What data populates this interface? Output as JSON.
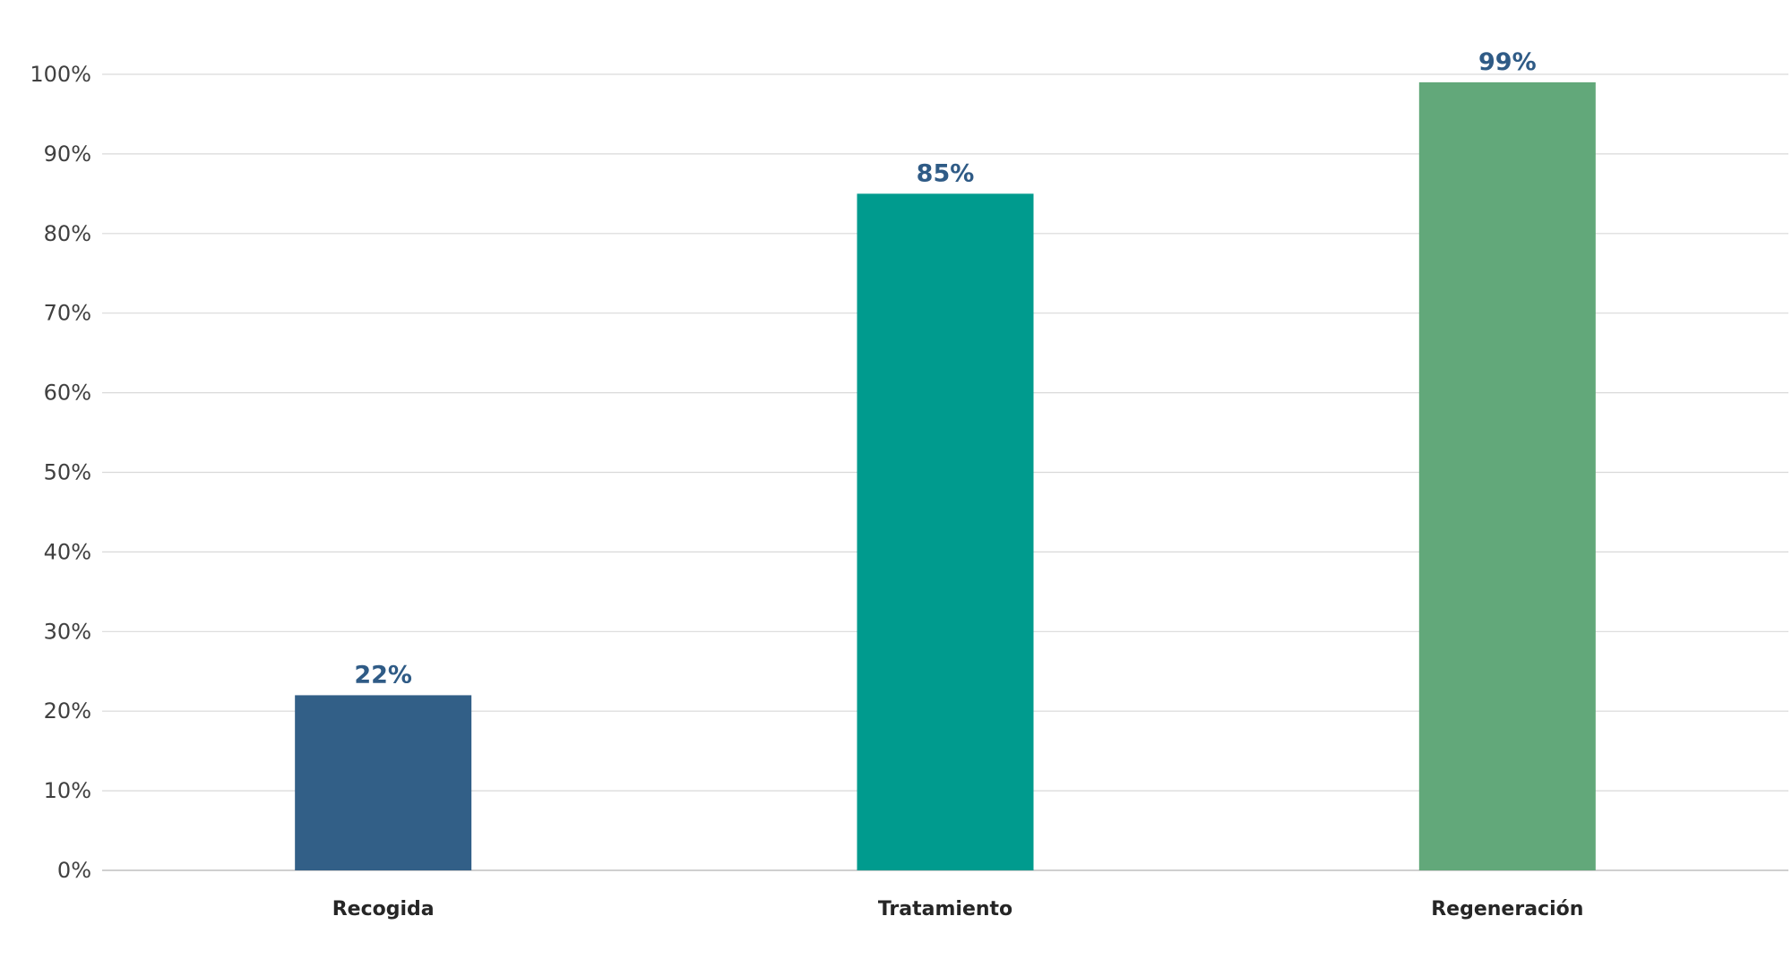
{
  "chart_data": {
    "type": "bar",
    "title": "",
    "xlabel": "",
    "ylabel": "",
    "categories": [
      "Recogida",
      "Tratamiento",
      "Regeneración"
    ],
    "values": [
      22,
      85,
      99
    ],
    "value_labels": [
      "22%",
      "85%",
      "99%"
    ],
    "ylim": [
      0,
      100
    ],
    "yticks": [
      0,
      10,
      20,
      30,
      40,
      50,
      60,
      70,
      80,
      90,
      100
    ],
    "ytick_labels": [
      "0%",
      "10%",
      "20%",
      "30%",
      "40%",
      "50%",
      "60%",
      "70%",
      "80%",
      "90%",
      "100%"
    ],
    "grid": true,
    "legend": "none",
    "colors": {
      "bars": [
        "#325F87",
        "#009B8E",
        "#62A87A"
      ],
      "value_label": "#2F5B86",
      "gridline": "#D9D9D9",
      "axis": "#BFBFBF"
    }
  }
}
